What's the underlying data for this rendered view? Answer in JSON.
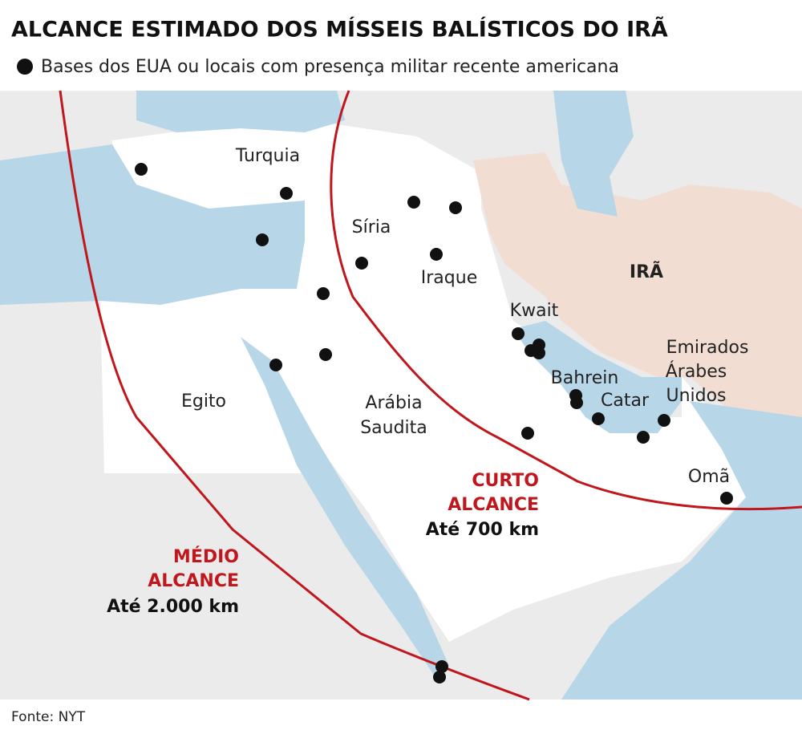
{
  "header": {
    "title": "ALCANCE ESTIMADO DOS MÍSSEIS BALÍSTICOS DO IRÃ",
    "legend": "Bases dos EUA ou locais com presença militar recente americana"
  },
  "countries": {
    "turkey": "Turquia",
    "syria": "Síria",
    "iraq": "Iraque",
    "iran": "IRÃ",
    "kuwait": "Kwait",
    "uae": [
      "Emirados",
      "Árabes",
      "Unidos"
    ],
    "bahrain": "Bahrein",
    "qatar": "Catar",
    "egypt": "Egito",
    "saudi": [
      "Arábia",
      "Saudita"
    ],
    "oman": "Omã"
  },
  "ranges": {
    "short": {
      "name": [
        "CURTO",
        "ALCANCE"
      ],
      "distance": "Até 700 km"
    },
    "medium": {
      "name": [
        "MÉDIO",
        "ALCANCE"
      ],
      "distance": "Até 2.000 km"
    }
  },
  "source": "Fonte: NYT"
}
